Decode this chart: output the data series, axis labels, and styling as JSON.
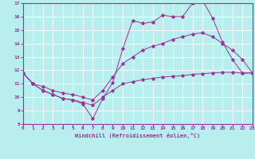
{
  "bg_color": "#b8eeee",
  "grid_color": "#d0f0f0",
  "line_color": "#993399",
  "xlabel": "Windchill (Refroidissement éolien,°C)",
  "xmin": 0,
  "xmax": 23,
  "ymin": 8,
  "ymax": 17,
  "curve1_x": [
    0,
    1,
    2,
    3,
    4,
    5,
    6,
    7,
    8,
    9,
    10,
    11,
    12,
    13,
    14,
    15,
    16,
    17,
    18,
    19,
    20,
    21,
    22,
    23
  ],
  "curve1_y": [
    11.8,
    11.0,
    10.5,
    10.2,
    9.9,
    9.8,
    9.5,
    8.4,
    9.9,
    11.1,
    13.6,
    15.7,
    15.5,
    15.6,
    16.1,
    16.0,
    16.0,
    17.0,
    17.2,
    15.9,
    14.1,
    12.8,
    11.8,
    11.8
  ],
  "curve2_x": [
    0,
    1,
    2,
    3,
    4,
    5,
    6,
    7,
    8,
    9,
    10,
    11,
    12,
    13,
    14,
    15,
    16,
    17,
    18,
    19,
    20,
    21,
    22,
    23
  ],
  "curve2_y": [
    11.8,
    11.0,
    10.8,
    10.5,
    10.3,
    10.2,
    10.0,
    9.8,
    10.5,
    11.5,
    12.5,
    13.0,
    13.5,
    13.8,
    14.0,
    14.3,
    14.5,
    14.7,
    14.8,
    14.5,
    14.0,
    13.5,
    12.8,
    11.8
  ],
  "curve3_x": [
    0,
    1,
    2,
    3,
    4,
    5,
    6,
    7,
    8,
    9,
    10,
    11,
    12,
    13,
    14,
    15,
    16,
    17,
    18,
    19,
    20,
    21,
    22,
    23
  ],
  "curve3_y": [
    11.8,
    11.0,
    10.5,
    10.2,
    9.9,
    9.8,
    9.6,
    9.4,
    10.0,
    10.5,
    11.0,
    11.15,
    11.3,
    11.4,
    11.5,
    11.55,
    11.6,
    11.7,
    11.75,
    11.8,
    11.85,
    11.85,
    11.8,
    11.8
  ],
  "yticks": [
    8,
    9,
    10,
    11,
    12,
    13,
    14,
    15,
    16,
    17
  ],
  "xticks": [
    0,
    1,
    2,
    3,
    4,
    5,
    6,
    7,
    8,
    9,
    10,
    11,
    12,
    13,
    14,
    15,
    16,
    17,
    18,
    19,
    20,
    21,
    22,
    23
  ]
}
